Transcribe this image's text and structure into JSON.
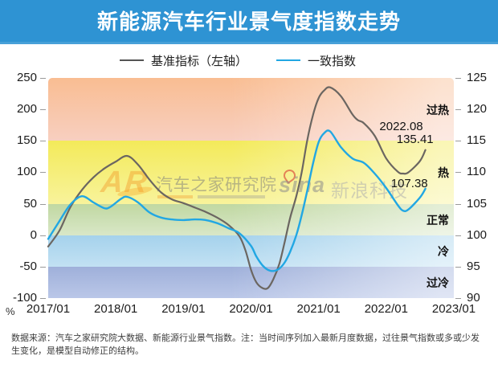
{
  "header": {
    "title": "新能源汽车行业景气度指数走势",
    "bg_color": "#2e93d3",
    "text_color": "#ffffff"
  },
  "legend": {
    "items": [
      {
        "label": "基准指标（左轴）",
        "color": "#555555"
      },
      {
        "label": "一致指数",
        "color": "#22a7e3"
      }
    ]
  },
  "chart_data": {
    "type": "line",
    "title": "新能源汽车行业景气度指数走势",
    "grid": false,
    "legend_position": "top-center",
    "x_axis": {
      "min": 2017,
      "max": 2023,
      "tick_labels": [
        "2017/01",
        "2018/01",
        "2019/01",
        "2020/01",
        "2021/01",
        "2022/01",
        "2023/01"
      ]
    },
    "left_axis": {
      "unit": "%",
      "min": -100,
      "max": 250,
      "ticks": [
        250,
        200,
        150,
        100,
        50,
        0,
        -50,
        -100
      ]
    },
    "right_axis": {
      "min": 90,
      "max": 125,
      "ticks": [
        125,
        120,
        115,
        110,
        105,
        100,
        95,
        90
      ]
    },
    "zones": [
      {
        "label": "过热",
        "axis": "left",
        "from": 150,
        "to": 250,
        "color_top": "#f9bd92",
        "color_bottom": "#f8cfc0"
      },
      {
        "label": "热",
        "axis": "left",
        "from": 50,
        "to": 150,
        "color_top": "#f3ea5a",
        "color_bottom": "#f8f39b"
      },
      {
        "label": "正常",
        "axis": "left",
        "from": 0,
        "to": 50,
        "color_top": "#c0d8a2",
        "color_bottom": "#d9e7c7"
      },
      {
        "label": "冷",
        "axis": "left",
        "from": -50,
        "to": 0,
        "color_top": "#a5d2ec",
        "color_bottom": "#c2e1f3"
      },
      {
        "label": "过冷",
        "axis": "left",
        "from": -100,
        "to": -50,
        "color_top": "#9fb0da",
        "color_bottom": "#bac7e8"
      }
    ],
    "series": [
      {
        "name": "基准指标（左轴）",
        "axis": "left",
        "color": "#6b6661",
        "width": 2.2,
        "x": [
          2017.0,
          2017.17,
          2017.33,
          2017.5,
          2017.67,
          2017.83,
          2018.0,
          2018.17,
          2018.33,
          2018.5,
          2018.67,
          2018.83,
          2019.0,
          2019.17,
          2019.33,
          2019.5,
          2019.67,
          2019.83,
          2019.92,
          2020.0,
          2020.08,
          2020.17,
          2020.25,
          2020.33,
          2020.42,
          2020.5,
          2020.58,
          2020.67,
          2020.75,
          2020.83,
          2020.92,
          2021.0,
          2021.08,
          2021.17,
          2021.33,
          2021.5,
          2021.58,
          2021.67,
          2021.83,
          2022.0,
          2022.17,
          2022.25,
          2022.33,
          2022.5,
          2022.58
        ],
        "values": [
          -18,
          8,
          45,
          72,
          92,
          106,
          117,
          126,
          112,
          88,
          68,
          57,
          51,
          44,
          37,
          28,
          16,
          -2,
          -25,
          -55,
          -75,
          -84,
          -84,
          -70,
          -45,
          -10,
          28,
          62,
          100,
          150,
          192,
          218,
          230,
          235,
          221,
          192,
          183,
          178,
          158,
          122,
          101,
          98,
          100,
          118,
          135.41
        ]
      },
      {
        "name": "一致指数",
        "axis": "right",
        "color": "#22a7e3",
        "width": 2.4,
        "x": [
          2017.0,
          2017.17,
          2017.33,
          2017.5,
          2017.67,
          2017.83,
          2017.92,
          2018.08,
          2018.17,
          2018.33,
          2018.5,
          2018.67,
          2018.83,
          2019.0,
          2019.17,
          2019.33,
          2019.5,
          2019.67,
          2019.83,
          2020.0,
          2020.08,
          2020.17,
          2020.25,
          2020.33,
          2020.42,
          2020.5,
          2020.58,
          2020.67,
          2020.75,
          2020.83,
          2020.92,
          2021.0,
          2021.08,
          2021.17,
          2021.33,
          2021.5,
          2021.67,
          2021.83,
          2022.0,
          2022.17,
          2022.25,
          2022.33,
          2022.5,
          2022.58
        ],
        "values": [
          99.4,
          102.3,
          104.9,
          106.2,
          105.2,
          104.3,
          104.5,
          105.8,
          106.1,
          105.2,
          103.6,
          102.8,
          102.5,
          102.4,
          102.5,
          102.4,
          101.9,
          101.1,
          100.3,
          98.3,
          96.6,
          95.2,
          94.5,
          94.3,
          94.7,
          95.7,
          97.4,
          100.0,
          103.2,
          107.0,
          111.5,
          114.8,
          116.2,
          116.5,
          114.0,
          112.2,
          111.5,
          109.8,
          107.5,
          104.8,
          103.9,
          104.1,
          106.0,
          107.38
        ]
      }
    ],
    "annotations": [
      {
        "text": "2022.08",
        "anchor_series": 0
      },
      {
        "text": "135.41",
        "anchor_series": 0
      },
      {
        "text": "107.38",
        "anchor_series": 1
      }
    ],
    "latest": {
      "date_label": "2022.08",
      "benchmark_value": 135.41,
      "coincident_value": 107.38
    }
  },
  "footer": {
    "note": "数据来源：汽车之家研究院大数据、新能源行业景气指数。注：当时间序列加入最新月度数据，过往景气指数或多或少发生变化，是模型自动修正的结构。"
  },
  "watermarks": {
    "autohome": {
      "logo": "AR",
      "text": "汽车之家研究院"
    },
    "sina": {
      "logo": "sina",
      "text": "新浪科技"
    }
  }
}
